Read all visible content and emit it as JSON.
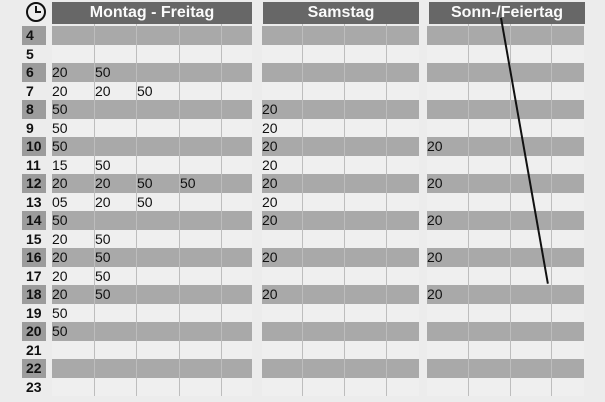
{
  "headers": {
    "mf": "Montag - Freitag",
    "sa": "Samstag",
    "so": "Sonn-/Feiertag"
  },
  "hours": [
    {
      "h": "4",
      "mf": [],
      "sa": [],
      "so": []
    },
    {
      "h": "5",
      "mf": [],
      "sa": [],
      "so": []
    },
    {
      "h": "6",
      "mf": [
        "20",
        "50"
      ],
      "sa": [],
      "so": []
    },
    {
      "h": "7",
      "mf": [
        "20",
        "20",
        "50"
      ],
      "sa": [],
      "so": []
    },
    {
      "h": "8",
      "mf": [
        "50"
      ],
      "sa": [
        "20"
      ],
      "so": []
    },
    {
      "h": "9",
      "mf": [
        "50"
      ],
      "sa": [
        "20"
      ],
      "so": []
    },
    {
      "h": "10",
      "mf": [
        "50"
      ],
      "sa": [
        "20"
      ],
      "so": [
        "20"
      ]
    },
    {
      "h": "11",
      "mf": [
        "15",
        "50"
      ],
      "sa": [
        "20"
      ],
      "so": []
    },
    {
      "h": "12",
      "mf": [
        "20",
        "20",
        "50",
        "50"
      ],
      "sa": [
        "20"
      ],
      "so": [
        "20"
      ]
    },
    {
      "h": "13",
      "mf": [
        "05",
        "20",
        "50"
      ],
      "sa": [
        "20"
      ],
      "so": []
    },
    {
      "h": "14",
      "mf": [
        "50"
      ],
      "sa": [
        "20"
      ],
      "so": [
        "20"
      ]
    },
    {
      "h": "15",
      "mf": [
        "20",
        "50"
      ],
      "sa": [],
      "so": []
    },
    {
      "h": "16",
      "mf": [
        "20",
        "50"
      ],
      "sa": [
        "20"
      ],
      "so": [
        "20"
      ]
    },
    {
      "h": "17",
      "mf": [
        "20",
        "50"
      ],
      "sa": [],
      "so": []
    },
    {
      "h": "18",
      "mf": [
        "20",
        "50"
      ],
      "sa": [
        "20"
      ],
      "so": [
        "20"
      ]
    },
    {
      "h": "19",
      "mf": [
        "50"
      ],
      "sa": [],
      "so": []
    },
    {
      "h": "20",
      "mf": [
        "50"
      ],
      "sa": [],
      "so": []
    },
    {
      "h": "21",
      "mf": [],
      "sa": [],
      "so": []
    },
    {
      "h": "22",
      "mf": [],
      "sa": [],
      "so": []
    },
    {
      "h": "23",
      "mf": [],
      "sa": [],
      "so": []
    }
  ]
}
